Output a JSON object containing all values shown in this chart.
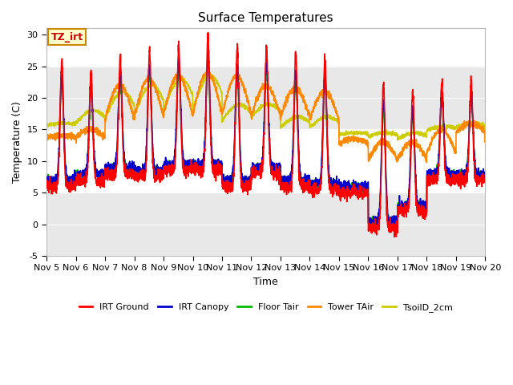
{
  "title": "Surface Temperatures",
  "xlabel": "Time",
  "ylabel": "Temperature (C)",
  "ylim": [
    -5,
    31
  ],
  "xlim_days": [
    5,
    20
  ],
  "legend_labels": [
    "IRT Ground",
    "IRT Canopy",
    "Floor Tair",
    "Tower TAir",
    "TsoilD_2cm"
  ],
  "legend_colors": [
    "#ff0000",
    "#0000cc",
    "#00bb00",
    "#ff8800",
    "#cccc00"
  ],
  "annotation_label": "TZ_irt",
  "annotation_color": "#cc8800",
  "annotation_bg": "#ffffcc",
  "band_below5_color": "#e8e8e8",
  "band_15_25_color": "#e8e8e8",
  "title_fontsize": 11,
  "axis_fontsize": 9,
  "tick_fontsize": 8,
  "line_width": 1.2
}
